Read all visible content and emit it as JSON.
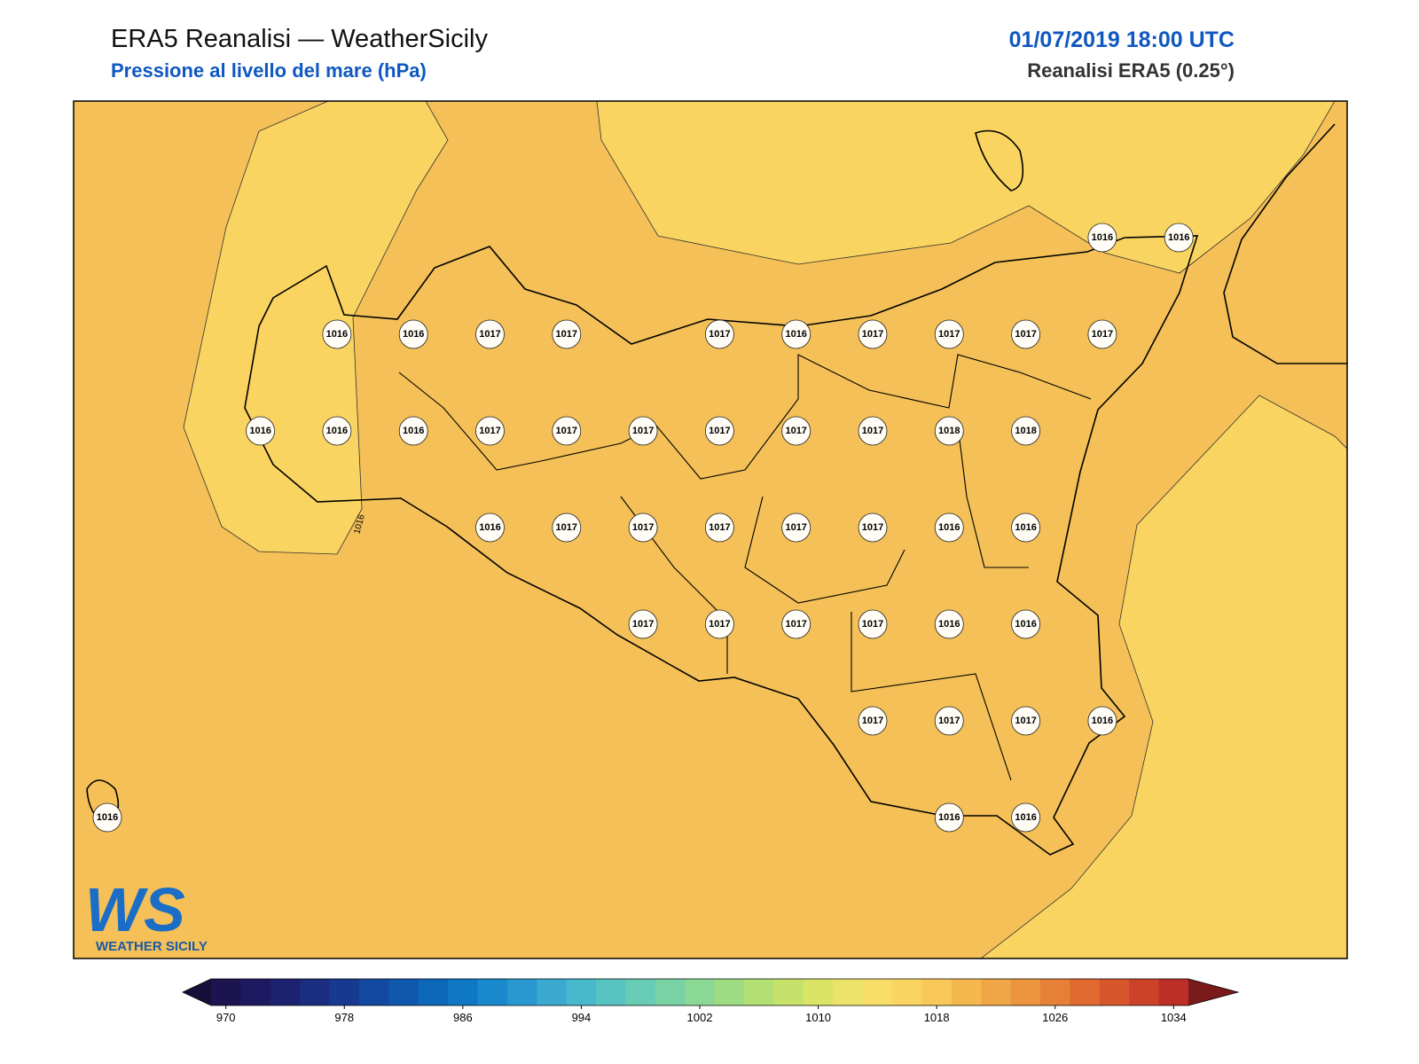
{
  "header": {
    "title": "ERA5 Reanalisi — WeatherSicily",
    "subtitle": "Pressione al livello del mare (hPa)",
    "datetime": "01/07/2019 18:00 UTC",
    "source": "Reanalisi ERA5 (0.25°)"
  },
  "map": {
    "station_values": [
      1016,
      1016,
      1016,
      1016,
      1017,
      1017,
      1017,
      1016,
      1017,
      1017,
      1017,
      1017,
      1016,
      1016,
      1016,
      1017,
      1017,
      1017,
      1017,
      1017,
      1017,
      1018,
      1018,
      1016,
      1017,
      1017,
      1017,
      1017,
      1017,
      1016,
      1016,
      1017,
      1017,
      1017,
      1017,
      1016,
      1016,
      1017,
      1017,
      1017,
      1016,
      1016,
      1016,
      1016
    ],
    "contour_labels": [
      "1016"
    ]
  },
  "colorbar": {
    "lim": [
      969,
      1035
    ],
    "ticks": [
      970,
      978,
      986,
      994,
      1002,
      1010,
      1018,
      1026,
      1034
    ],
    "colors": [
      "#1c1450",
      "#1d1a62",
      "#1d2270",
      "#1b2d80",
      "#173a90",
      "#1348a0",
      "#0f58ae",
      "#0d68ba",
      "#0f78c4",
      "#1a88cc",
      "#2a98d0",
      "#3aaad0",
      "#48b8cc",
      "#58c4c2",
      "#68ccb4",
      "#78d2a4",
      "#8ad894",
      "#9edc84",
      "#b2e074",
      "#c6e26a",
      "#dae466",
      "#ece46a",
      "#f8de68",
      "#fad460",
      "#f8c858",
      "#f4b84e",
      "#f0a646",
      "#ec943e",
      "#e68036",
      "#e06a30",
      "#d8562c",
      "#cc4228",
      "#bc2e26"
    ],
    "under_color": "#160f3a",
    "over_color": "#7a1a1a"
  },
  "logo": {
    "mark": "WS",
    "name": "WEATHER SICILY"
  }
}
